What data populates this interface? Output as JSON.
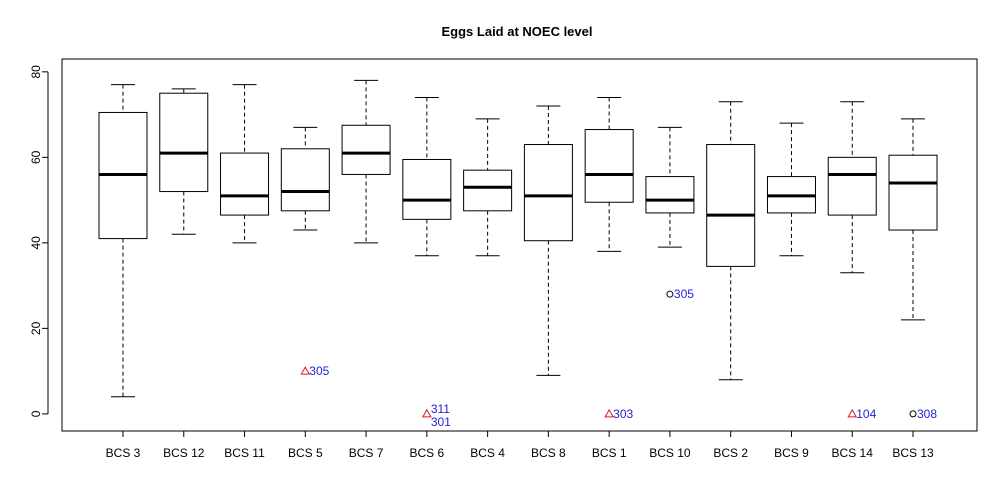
{
  "chart_data": {
    "type": "boxplot",
    "title": "Eggs Laid at NOEC level",
    "xlabel": "",
    "ylabel": "",
    "ylim": [
      -4,
      83
    ],
    "yticks": [
      0,
      20,
      40,
      60,
      80
    ],
    "categories": [
      "BCS 3",
      "BCS 12",
      "BCS 11",
      "BCS 5",
      "BCS 7",
      "BCS 6",
      "BCS 4",
      "BCS 8",
      "BCS 1",
      "BCS 10",
      "BCS 2",
      "BCS 9",
      "BCS 14",
      "BCS 13"
    ],
    "boxes": [
      {
        "category": "BCS 3",
        "whisker_low": 4,
        "q1": 41,
        "median": 56,
        "q3": 70.5,
        "whisker_high": 77
      },
      {
        "category": "BCS 12",
        "whisker_low": 42,
        "q1": 52,
        "median": 61,
        "q3": 75,
        "whisker_high": 76
      },
      {
        "category": "BCS 11",
        "whisker_low": 40,
        "q1": 46.5,
        "median": 51,
        "q3": 61,
        "whisker_high": 77
      },
      {
        "category": "BCS 5",
        "whisker_low": 43,
        "q1": 47.5,
        "median": 52,
        "q3": 62,
        "whisker_high": 67
      },
      {
        "category": "BCS 7",
        "whisker_low": 40,
        "q1": 56,
        "median": 61,
        "q3": 67.5,
        "whisker_high": 78
      },
      {
        "category": "BCS 6",
        "whisker_low": 37,
        "q1": 45.5,
        "median": 50,
        "q3": 59.5,
        "whisker_high": 74
      },
      {
        "category": "BCS 4",
        "whisker_low": 37,
        "q1": 47.5,
        "median": 53,
        "q3": 57,
        "whisker_high": 69
      },
      {
        "category": "BCS 8",
        "whisker_low": 9,
        "q1": 40.5,
        "median": 51,
        "q3": 63,
        "whisker_high": 72
      },
      {
        "category": "BCS 1",
        "whisker_low": 38,
        "q1": 49.5,
        "median": 56,
        "q3": 66.5,
        "whisker_high": 74
      },
      {
        "category": "BCS 10",
        "whisker_low": 39,
        "q1": 47,
        "median": 50,
        "q3": 55.5,
        "whisker_high": 67
      },
      {
        "category": "BCS 2",
        "whisker_low": 8,
        "q1": 34.5,
        "median": 46.5,
        "q3": 63,
        "whisker_high": 73
      },
      {
        "category": "BCS 9",
        "whisker_low": 37,
        "q1": 47,
        "median": 51,
        "q3": 55.5,
        "whisker_high": 68
      },
      {
        "category": "BCS 14",
        "whisker_low": 33,
        "q1": 46.5,
        "median": 56,
        "q3": 60,
        "whisker_high": 73
      },
      {
        "category": "BCS 13",
        "whisker_low": 22,
        "q1": 43,
        "median": 54,
        "q3": 60.5,
        "whisker_high": 69
      }
    ],
    "points": [
      {
        "category": "BCS 5",
        "y": 10,
        "marker": "triangle",
        "color": "#e8141e",
        "label": "305"
      },
      {
        "category": "BCS 6",
        "y": 0,
        "marker": "triangle",
        "color": "#e8141e",
        "label": "311",
        "label_offset": "above"
      },
      {
        "category": "BCS 6",
        "y": 0,
        "marker": "none",
        "color": "#1f1fd6",
        "label": "301",
        "label_offset": "below"
      },
      {
        "category": "BCS 1",
        "y": 0,
        "marker": "triangle",
        "color": "#e8141e",
        "label": "303"
      },
      {
        "category": "BCS 10",
        "y": 28,
        "marker": "circle",
        "color": "#000000",
        "label": "305"
      },
      {
        "category": "BCS 14",
        "y": 0,
        "marker": "triangle",
        "color": "#e8141e",
        "label": "104"
      },
      {
        "category": "BCS 13",
        "y": 0,
        "marker": "circle",
        "color": "#000000",
        "label": "308"
      }
    ],
    "colors": {
      "box": "#000000",
      "point_label": "#1f1fd6",
      "triangle": "#e8141e"
    },
    "grid": false,
    "legend": "none"
  }
}
